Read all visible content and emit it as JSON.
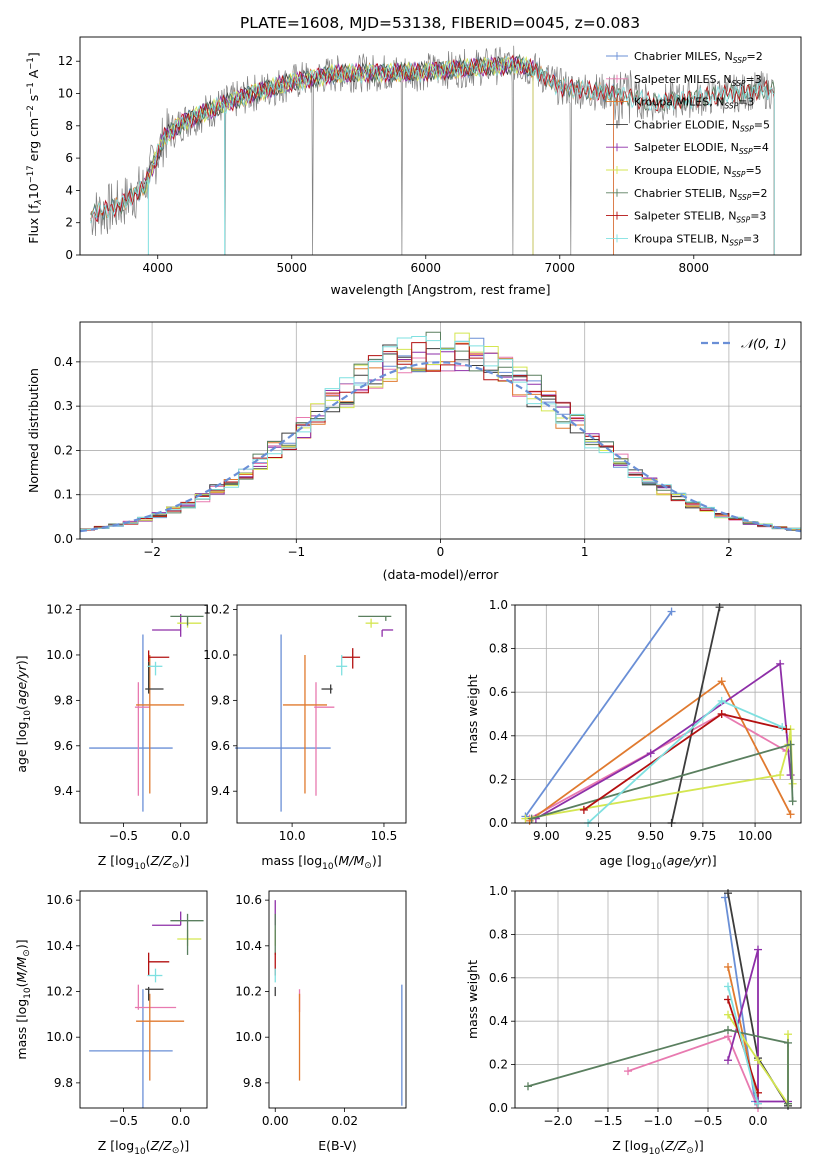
{
  "title": "PLATE=1608, MJD=53138, FIBERID=0045, z=0.083",
  "colors": {
    "chabrier_miles": "#6a8fd6",
    "salpeter_miles": "#e87ab0",
    "kroupa_miles": "#e07a2f",
    "chabrier_elodie": "#3c3c3c",
    "salpeter_elodie": "#8e2fa8",
    "kroupa_elodie": "#d4e650",
    "chabrier_stelib": "#5a7f5f",
    "salpeter_stelib": "#b31010",
    "kroupa_stelib": "#7fe0e0",
    "grid": "#b0b0b0",
    "normal": "#6a8fd6"
  },
  "chart_data": [
    {
      "id": "spectrum",
      "type": "line",
      "xlabel": "wavelength [Angstrom, rest frame]",
      "ylabel_parts": [
        "Flux [f",
        "λ",
        "10",
        "−17",
        " erg cm",
        "−2",
        " s",
        "−1",
        " A",
        "−1",
        "]"
      ],
      "xlim": [
        3420,
        8800
      ],
      "ylim": [
        0,
        13.5
      ],
      "xticks": [
        4000,
        5000,
        6000,
        7000,
        8000
      ],
      "yticks": [
        0,
        2,
        4,
        6,
        8,
        10,
        12
      ],
      "legend": [
        {
          "prefix": "Chabrier MILES, N",
          "sub": "SSP",
          "suffix": "=2"
        },
        {
          "prefix": "Salpeter MILES, N",
          "sub": "SSP",
          "suffix": "=3"
        },
        {
          "prefix": "Kroupa MILES, N",
          "sub": "SSP",
          "suffix": "=3"
        },
        {
          "prefix": "Chabrier ELODIE, N",
          "sub": "SSP",
          "suffix": "=5"
        },
        {
          "prefix": "Salpeter ELODIE, N",
          "sub": "SSP",
          "suffix": "=4"
        },
        {
          "prefix": "Kroupa ELODIE, N",
          "sub": "SSP",
          "suffix": "=5"
        },
        {
          "prefix": "Chabrier STELIB, N",
          "sub": "SSP",
          "suffix": "=2"
        },
        {
          "prefix": "Salpeter STELIB, N",
          "sub": "SSP",
          "suffix": "=3"
        },
        {
          "prefix": "Kroupa STELIB, N",
          "sub": "SSP",
          "suffix": "=3"
        }
      ],
      "legend_position": "right",
      "continuum_anchors": [
        [
          3500,
          2.5
        ],
        [
          3700,
          3.0
        ],
        [
          3900,
          4.2
        ],
        [
          4050,
          7.3
        ],
        [
          4200,
          8.3
        ],
        [
          4400,
          9.0
        ],
        [
          4700,
          10.0
        ],
        [
          5000,
          10.7
        ],
        [
          5300,
          11.2
        ],
        [
          5600,
          11.3
        ],
        [
          5900,
          11.3
        ],
        [
          6200,
          11.5
        ],
        [
          6500,
          11.7
        ],
        [
          6700,
          11.8
        ],
        [
          6800,
          11.5
        ],
        [
          7000,
          10.4
        ],
        [
          7400,
          10.0
        ],
        [
          7700,
          9.4
        ],
        [
          7900,
          9.6
        ],
        [
          8200,
          9.9
        ],
        [
          8500,
          10.2
        ]
      ],
      "series_extent": {
        "chabrier_miles": [
          3500,
          7400
        ],
        "salpeter_miles": [
          3500,
          7400
        ],
        "kroupa_miles": [
          3500,
          7400
        ],
        "chabrier_elodie": [
          3900,
          6800
        ],
        "salpeter_elodie": [
          3900,
          6800
        ],
        "kroupa_elodie": [
          3900,
          6800
        ],
        "chabrier_stelib": [
          3500,
          8600
        ],
        "salpeter_stelib": [
          3500,
          8600
        ],
        "kroupa_stelib": [
          3500,
          8600
        ]
      },
      "data_gaps": [
        4500,
        5155,
        5820,
        6650,
        7080
      ]
    },
    {
      "id": "residuals",
      "type": "histogram",
      "xlabel": "(data-model)/error",
      "ylabel": "Normed distribution",
      "xlim": [
        -2.5,
        2.5
      ],
      "ylim": [
        0,
        0.49
      ],
      "xticks": [
        -2,
        -1,
        0,
        1,
        2
      ],
      "yticks": [
        0.0,
        0.1,
        0.2,
        0.3,
        0.4
      ],
      "grid": true,
      "legend": {
        "label": "𝒩(0, 1)",
        "position": "top-right"
      },
      "bins": 50,
      "series_count": 9
    },
    {
      "id": "age_vs_Z",
      "type": "errorbar",
      "xlabel": "Z [log10(Z/Z☉)]",
      "ylabel": "age  [log10(age/yr)]",
      "xlim": [
        -0.88,
        0.23
      ],
      "ylim": [
        9.26,
        10.22
      ],
      "xticks": [
        -0.5,
        0.0
      ],
      "yticks": [
        9.4,
        9.6,
        9.8,
        10.0,
        10.2
      ],
      "points": [
        {
          "model": "chabrier_miles",
          "x": -0.33,
          "xerr": [
            0.47,
            0.26
          ],
          "y": 9.59,
          "yerr": [
            0.28,
            0.5
          ]
        },
        {
          "model": "salpeter_miles",
          "x": -0.37,
          "xerr": [
            0.03,
            0.1
          ],
          "y": 9.77,
          "yerr": [
            0.39,
            0.11
          ]
        },
        {
          "model": "kroupa_miles",
          "x": -0.27,
          "xerr": [
            0.12,
            0.3
          ],
          "y": 9.78,
          "yerr": [
            0.39,
            0.22
          ]
        },
        {
          "model": "chabrier_elodie",
          "x": -0.28,
          "xerr": [
            0.03,
            0.13
          ],
          "y": 9.85,
          "yerr": [
            0.02,
            0.12
          ]
        },
        {
          "model": "salpeter_elodie",
          "x": 0.0,
          "xerr": [
            0.25,
            0.0
          ],
          "y": 10.11,
          "yerr": [
            0.03,
            0.07
          ]
        },
        {
          "model": "kroupa_elodie",
          "x": 0.06,
          "xerr": [
            0.09,
            0.12
          ],
          "y": 10.14,
          "yerr": [
            0.02,
            0.02
          ]
        },
        {
          "model": "chabrier_stelib",
          "x": 0.06,
          "xerr": [
            0.15,
            0.14
          ],
          "y": 10.17,
          "yerr": [
            0.04,
            0.0
          ]
        },
        {
          "model": "salpeter_stelib",
          "x": -0.28,
          "xerr": [
            0.0,
            0.18
          ],
          "y": 9.99,
          "yerr": [
            0.02,
            0.03
          ]
        },
        {
          "model": "kroupa_stelib",
          "x": -0.22,
          "xerr": [
            0.07,
            0.06
          ],
          "y": 9.95,
          "yerr": [
            0.04,
            0.02
          ]
        }
      ]
    },
    {
      "id": "age_vs_mass",
      "type": "errorbar",
      "xlabel": "mass [log10(M/M☉)]",
      "ylabel": "",
      "xlim": [
        9.7,
        10.62
      ],
      "ylim": [
        9.26,
        10.22
      ],
      "xticks": [
        10.0,
        10.5
      ],
      "yticks": [
        9.4,
        9.6,
        9.8,
        10.0,
        10.2
      ],
      "points": [
        {
          "model": "chabrier_miles",
          "x": 9.94,
          "xerr": [
            0.25,
            0.27
          ],
          "y": 9.59,
          "yerr": [
            0.28,
            0.5
          ]
        },
        {
          "model": "salpeter_miles",
          "x": 10.13,
          "xerr": [
            0.01,
            0.1
          ],
          "y": 9.77,
          "yerr": [
            0.39,
            0.11
          ]
        },
        {
          "model": "kroupa_miles",
          "x": 10.07,
          "xerr": [
            0.12,
            0.12
          ],
          "y": 9.78,
          "yerr": [
            0.39,
            0.22
          ]
        },
        {
          "model": "chabrier_elodie",
          "x": 10.21,
          "xerr": [
            0.05,
            0.01
          ],
          "y": 9.85,
          "yerr": [
            0.02,
            0.02
          ]
        },
        {
          "model": "salpeter_elodie",
          "x": 10.49,
          "xerr": [
            0.0,
            0.06
          ],
          "y": 10.11,
          "yerr": [
            0.03,
            0.0
          ]
        },
        {
          "model": "kroupa_elodie",
          "x": 10.43,
          "xerr": [
            0.03,
            0.04
          ],
          "y": 10.14,
          "yerr": [
            0.02,
            0.02
          ]
        },
        {
          "model": "chabrier_stelib",
          "x": 10.51,
          "xerr": [
            0.15,
            0.03
          ],
          "y": 10.17,
          "yerr": [
            0.02,
            0.0
          ]
        },
        {
          "model": "salpeter_stelib",
          "x": 10.33,
          "xerr": [
            0.06,
            0.04
          ],
          "y": 9.99,
          "yerr": [
            0.05,
            0.04
          ]
        },
        {
          "model": "kroupa_stelib",
          "x": 10.27,
          "xerr": [
            0.03,
            0.03
          ],
          "y": 9.95,
          "yerr": [
            0.04,
            0.05
          ]
        }
      ]
    },
    {
      "id": "weight_vs_age",
      "type": "line",
      "xlabel": "age  [log10(age/yr)]",
      "ylabel": "mass weight",
      "xlim": [
        8.85,
        10.22
      ],
      "ylim": [
        0,
        1.0
      ],
      "xticks": [
        9.0,
        9.25,
        9.5,
        9.75,
        10.0
      ],
      "yticks": [
        0.0,
        0.2,
        0.4,
        0.6,
        0.8,
        1.0
      ],
      "grid": true,
      "series": [
        {
          "model": "chabrier_miles",
          "x": [
            8.9,
            9.6
          ],
          "y": [
            0.03,
            0.97
          ]
        },
        {
          "model": "salpeter_miles",
          "x": [
            8.92,
            9.84,
            10.15
          ],
          "y": [
            0.02,
            0.5,
            0.33
          ]
        },
        {
          "model": "kroupa_miles",
          "x": [
            8.92,
            9.84,
            10.17
          ],
          "y": [
            0.01,
            0.65,
            0.04
          ]
        },
        {
          "model": "chabrier_elodie",
          "x": [
            9.6,
            9.83
          ],
          "y": [
            0.0,
            0.99
          ]
        },
        {
          "model": "salpeter_elodie",
          "x": [
            8.95,
            9.5,
            10.12,
            10.17
          ],
          "y": [
            0.02,
            0.32,
            0.73,
            0.22
          ]
        },
        {
          "model": "kroupa_elodie",
          "x": [
            8.9,
            10.12,
            10.16,
            10.17,
            10.18
          ],
          "y": [
            0.02,
            0.22,
            0.36,
            0.43,
            0.18
          ]
        },
        {
          "model": "chabrier_stelib",
          "x": [
            8.93,
            10.17,
            10.18
          ],
          "y": [
            0.02,
            0.36,
            0.1
          ]
        },
        {
          "model": "salpeter_stelib",
          "x": [
            9.18,
            9.84,
            10.15
          ],
          "y": [
            0.06,
            0.5,
            0.43
          ]
        },
        {
          "model": "kroupa_stelib",
          "x": [
            9.2,
            9.84,
            10.13
          ],
          "y": [
            0.0,
            0.56,
            0.44
          ]
        }
      ]
    },
    {
      "id": "mass_vs_Z",
      "type": "errorbar",
      "xlabel": "Z [log10(Z/Z☉)]",
      "ylabel": "mass [log10(M/M☉)]",
      "xlim": [
        -0.88,
        0.23
      ],
      "ylim": [
        9.69,
        10.64
      ],
      "xticks": [
        -0.5,
        0.0
      ],
      "yticks": [
        9.8,
        10.0,
        10.2,
        10.4,
        10.6
      ],
      "points": [
        {
          "model": "chabrier_miles",
          "x": -0.33,
          "xerr": [
            0.47,
            0.26
          ],
          "y": 9.94,
          "yerr": [
            0.25,
            0.27
          ]
        },
        {
          "model": "salpeter_miles",
          "x": -0.37,
          "xerr": [
            0.03,
            0.33
          ],
          "y": 10.13,
          "yerr": [
            0.01,
            0.1
          ]
        },
        {
          "model": "kroupa_miles",
          "x": -0.27,
          "xerr": [
            0.12,
            0.3
          ],
          "y": 10.07,
          "yerr": [
            0.26,
            0.12
          ]
        },
        {
          "model": "chabrier_elodie",
          "x": -0.28,
          "xerr": [
            0.03,
            0.13
          ],
          "y": 10.21,
          "yerr": [
            0.05,
            0.01
          ]
        },
        {
          "model": "salpeter_elodie",
          "x": 0.0,
          "xerr": [
            0.25,
            0.0
          ],
          "y": 10.49,
          "yerr": [
            0.0,
            0.06
          ]
        },
        {
          "model": "kroupa_elodie",
          "x": 0.06,
          "xerr": [
            0.09,
            0.12
          ],
          "y": 10.43,
          "yerr": [
            0.03,
            0.04
          ]
        },
        {
          "model": "chabrier_stelib",
          "x": 0.06,
          "xerr": [
            0.15,
            0.14
          ],
          "y": 10.51,
          "yerr": [
            0.15,
            0.03
          ]
        },
        {
          "model": "salpeter_stelib",
          "x": -0.28,
          "xerr": [
            0.0,
            0.18
          ],
          "y": 10.33,
          "yerr": [
            0.06,
            0.04
          ]
        },
        {
          "model": "kroupa_stelib",
          "x": -0.22,
          "xerr": [
            0.07,
            0.06
          ],
          "y": 10.27,
          "yerr": [
            0.03,
            0.03
          ]
        }
      ]
    },
    {
      "id": "mass_vs_ebv",
      "type": "errorbar",
      "xlabel": "E(B-V)",
      "ylabel": "",
      "xlim": [
        -0.0018,
        0.0377
      ],
      "ylim": [
        9.69,
        10.64
      ],
      "xticks": [
        0.0,
        0.02
      ],
      "yticks": [
        9.8,
        10.0,
        10.2,
        10.4,
        10.6
      ],
      "points": [
        {
          "model": "chabrier_miles",
          "x": 0.0365,
          "y": 9.94,
          "yerr": [
            0.24,
            0.29
          ]
        },
        {
          "model": "salpeter_miles",
          "x": 0.007,
          "y": 10.13,
          "yerr": [
            0.02,
            0.08
          ]
        },
        {
          "model": "kroupa_miles",
          "x": 0.007,
          "y": 10.07,
          "yerr": [
            0.26,
            0.12
          ]
        },
        {
          "model": "chabrier_elodie",
          "x": 0.0,
          "y": 10.21,
          "yerr": [
            0.03,
            0.01
          ]
        },
        {
          "model": "salpeter_elodie",
          "x": 0.0,
          "y": 10.49,
          "yerr": [
            0.0,
            0.11
          ]
        },
        {
          "model": "kroupa_elodie",
          "x": 0.0,
          "y": 10.43,
          "yerr": [
            0.03,
            0.04
          ]
        },
        {
          "model": "chabrier_stelib",
          "x": 0.0,
          "y": 10.51,
          "yerr": [
            0.15,
            0.03
          ]
        },
        {
          "model": "salpeter_stelib",
          "x": 0.0,
          "y": 10.33,
          "yerr": [
            0.06,
            0.04
          ]
        },
        {
          "model": "kroupa_stelib",
          "x": 0.0,
          "y": 10.27,
          "yerr": [
            0.03,
            0.03
          ]
        }
      ]
    },
    {
      "id": "weight_vs_Z",
      "type": "line",
      "xlabel": "Z [log10(Z/Z☉)]",
      "ylabel": "mass weight",
      "xlim": [
        -2.43,
        0.43
      ],
      "ylim": [
        0,
        1.0
      ],
      "xticks": [
        -2.0,
        -1.5,
        -1.0,
        -0.5,
        0.0
      ],
      "yticks": [
        0.0,
        0.2,
        0.4,
        0.6,
        0.8,
        1.0
      ],
      "grid": true,
      "series": [
        {
          "model": "chabrier_miles",
          "x": [
            -0.33,
            -0.03
          ],
          "y": [
            0.97,
            0.03
          ]
        },
        {
          "model": "salpeter_miles",
          "x": [
            -1.3,
            -0.3,
            0.0
          ],
          "y": [
            0.17,
            0.33,
            0.0
          ]
        },
        {
          "model": "kroupa_miles",
          "x": [
            -0.3,
            0.0
          ],
          "y": [
            0.65,
            0.02
          ]
        },
        {
          "model": "chabrier_elodie",
          "x": [
            -0.3,
            0.0,
            0.3
          ],
          "y": [
            0.99,
            0.23,
            0.01
          ]
        },
        {
          "model": "salpeter_elodie",
          "x": [
            -0.3,
            0.0,
            0.0,
            0.3
          ],
          "y": [
            0.22,
            0.73,
            0.03,
            0.03
          ]
        },
        {
          "model": "kroupa_elodie",
          "x": [
            -0.3,
            0.0,
            0.3,
            0.3
          ],
          "y": [
            0.43,
            0.22,
            0.02,
            0.34
          ]
        },
        {
          "model": "chabrier_stelib",
          "x": [
            -2.3,
            -0.3,
            0.3,
            0.3
          ],
          "y": [
            0.1,
            0.36,
            0.3,
            0.02
          ]
        },
        {
          "model": "salpeter_stelib",
          "x": [
            -0.3,
            0.0
          ],
          "y": [
            0.5,
            0.07
          ]
        },
        {
          "model": "kroupa_stelib",
          "x": [
            -0.3,
            0.0
          ],
          "y": [
            0.56,
            0.02
          ]
        }
      ]
    }
  ]
}
